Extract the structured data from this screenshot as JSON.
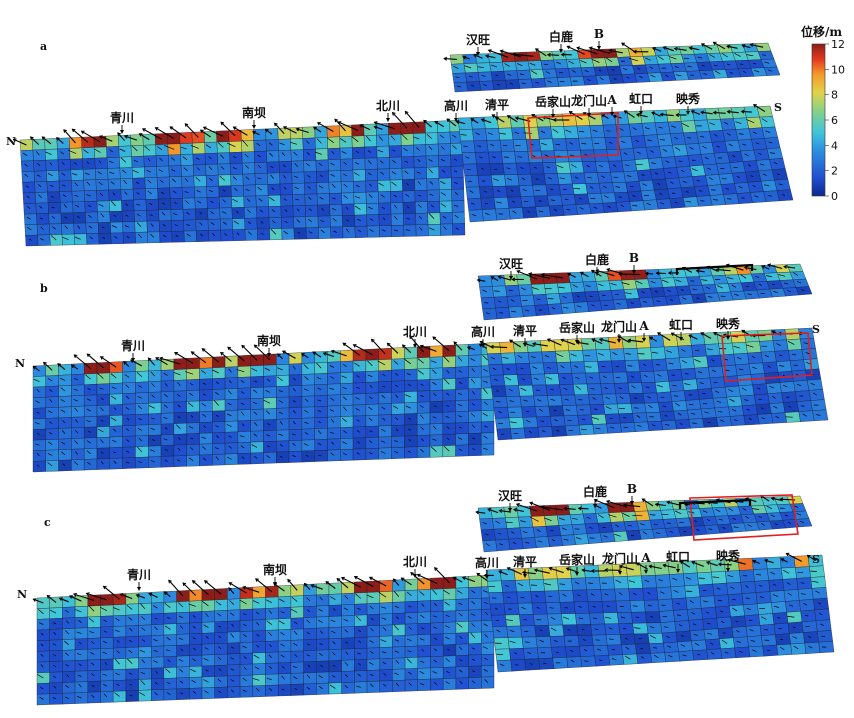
{
  "chart_data": {
    "type": "heatmap",
    "colorbar": {
      "title": "位移/m",
      "ticks": [
        0,
        2,
        4,
        6,
        8,
        10,
        12
      ],
      "range": [
        0,
        12
      ],
      "colormap": "jet"
    },
    "edge_labels": {
      "north": "N",
      "south": "S"
    },
    "panels": [
      {
        "label": "a",
        "lower_places": [
          "青川",
          "南坝",
          "北川",
          "高川",
          "清平",
          "岳家山",
          "龙门山",
          "A",
          "虹口",
          "映秀"
        ],
        "upper_places": [
          "汉旺",
          "白鹿",
          "B"
        ],
        "highlight": "红框（龙门山下方）"
      },
      {
        "label": "b",
        "lower_places": [
          "青川",
          "南坝",
          "北川",
          "高川",
          "清平",
          "岳家山",
          "龙门山",
          "A",
          "虹口",
          "映秀"
        ],
        "upper_places": [
          "汉旺",
          "白鹿",
          "B"
        ],
        "highlight": "红框（映秀附近）"
      },
      {
        "label": "c",
        "lower_places": [
          "青川",
          "南坝",
          "北川",
          "高川",
          "清平",
          "岳家山",
          "龙门山",
          "A",
          "虹口",
          "映秀"
        ],
        "upper_places": [
          "汉旺",
          "白鹿",
          "B"
        ],
        "highlight": "红框（上断层南段）"
      }
    ]
  }
}
